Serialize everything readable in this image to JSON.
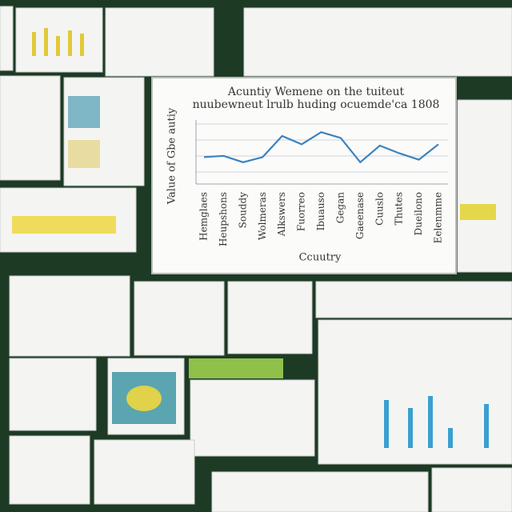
{
  "chart_data": {
    "type": "line",
    "title": [
      "Acuntiy Wemene on the tuiteut",
      "nuubewneut lrulb huding ocuemde'ca 1808"
    ],
    "y_label": "Value of Gbe autiy",
    "x_label": "Ccuutry",
    "categories": [
      "Hemglaes",
      "Heupshons",
      "Souddy",
      "Wolmeras",
      "Alkswers",
      "Fuorreo",
      "Ibuauso",
      "Gegan",
      "Gaeenase",
      "Cuuslo",
      "Thutes",
      "Dueilono",
      "Eelenmme"
    ],
    "series": [
      {
        "name": "Value",
        "color": "#3b83c0",
        "values": [
          42,
          44,
          34,
          42,
          75,
          62,
          81,
          72,
          34,
          60,
          48,
          38,
          62
        ]
      }
    ],
    "ylim": [
      0,
      100
    ]
  }
}
